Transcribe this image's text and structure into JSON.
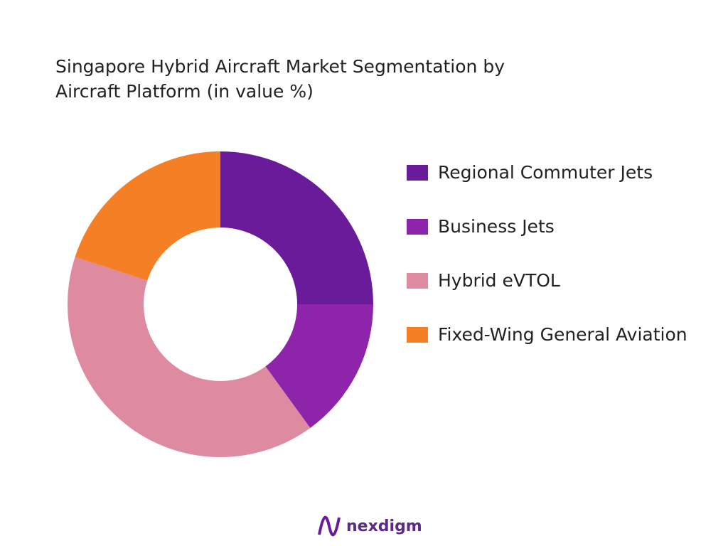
{
  "chart_data": {
    "type": "donut",
    "title": "Singapore Hybrid Aircraft Market Segmentation by Aircraft Platform (in value %)",
    "categories": [
      "Regional Commuter Jets",
      "Business Jets",
      "Hybrid eVTOL",
      "Fixed-Wing General Aviation"
    ],
    "values": [
      25,
      15,
      40,
      20
    ],
    "colors": [
      "#6a1b9a",
      "#8e24aa",
      "#de8aa0",
      "#f47f24"
    ],
    "legend": "right"
  },
  "brand": "nexdigm"
}
